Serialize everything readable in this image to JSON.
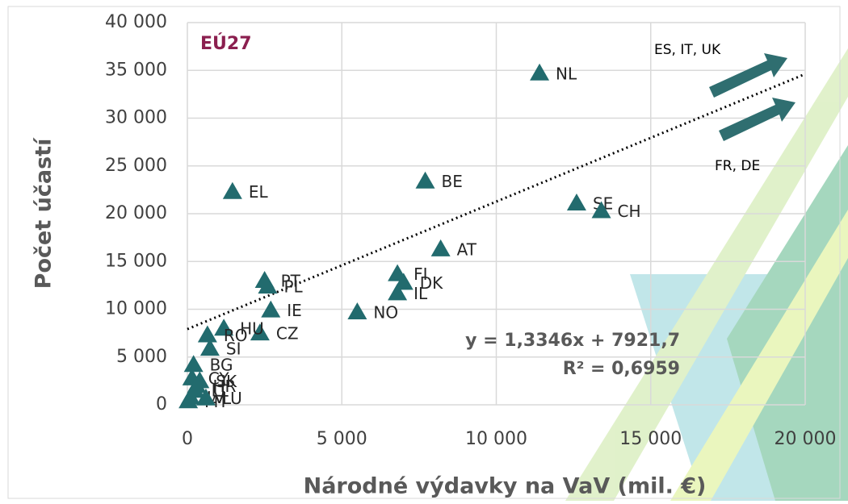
{
  "chart_data": {
    "type": "scatter",
    "y_label": "Počet účastí",
    "x_label": "Národné výdavky na VaV (mil. €)",
    "annotations": [
      "EÚ27",
      "ES, IT, UK",
      "FR, DE"
    ],
    "color": "#226b6e",
    "grid": true,
    "xlim": [
      0,
      20000
    ],
    "ylim": [
      0,
      40000
    ],
    "xticks": [
      0,
      {
        "value": 5000,
        "label": "5 000"
      },
      {
        "value": 10000,
        "label": "10 000"
      },
      {
        "value": 15000,
        "label": "15 000"
      },
      {
        "value": 20000,
        "label": "20 000"
      }
    ],
    "yticks": [
      0,
      {
        "value": 5000,
        "label": "5 000"
      },
      {
        "value": 10000,
        "label": "10 000"
      },
      {
        "value": 15000,
        "label": "15 000"
      },
      {
        "value": 20000,
        "label": "20 000"
      },
      {
        "value": 25000,
        "label": "25 000"
      },
      {
        "value": 30000,
        "label": "30 000"
      },
      {
        "value": 35000,
        "label": "35 000"
      },
      {
        "value": 40000,
        "label": "40 000"
      }
    ],
    "point_labels": [
      "NL",
      "BE",
      "EL",
      "SE",
      "CH",
      "AT",
      "FI",
      "DK",
      "IL",
      "NO",
      "PT",
      "PL",
      "IE",
      "CZ",
      "HU",
      "RO",
      "SI",
      "BG",
      "CY",
      "SK",
      "HR",
      "LT",
      "LV",
      "MT",
      "LU"
    ],
    "x": [
      11400,
      7700,
      1460,
      12600,
      13400,
      8200,
      6800,
      7000,
      6800,
      5500,
      2500,
      2600,
      2700,
      2350,
      1180,
      650,
      730,
      200,
      150,
      400,
      300,
      250,
      100,
      30,
      600
    ],
    "values": [
      34700,
      23400,
      22300,
      21100,
      20300,
      16300,
      13700,
      12800,
      11700,
      9700,
      13000,
      12400,
      9900,
      7500,
      8000,
      7300,
      5900,
      4200,
      2800,
      2500,
      2000,
      1500,
      800,
      400,
      700
    ],
    "trendline": {
      "slope": 1.3346,
      "intercept": 7921.7,
      "label": "y = 1,3346x + 7921,7",
      "r2_label": "R² = 0,6959"
    }
  }
}
